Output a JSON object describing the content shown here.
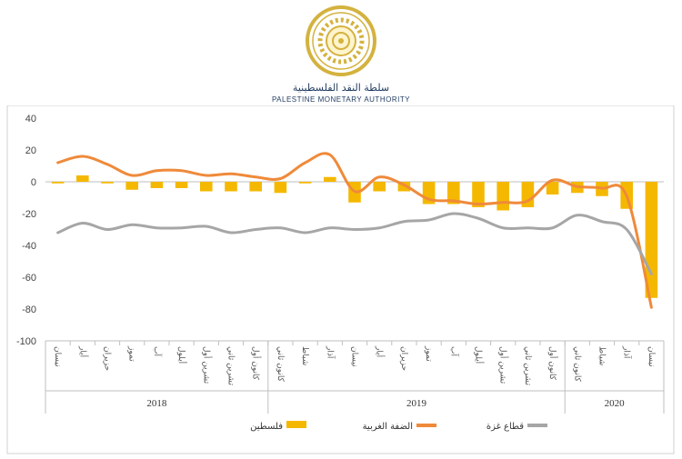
{
  "header": {
    "logo_text_ar": "سلطة النقد الفلسطينية",
    "logo_text_en": "PALESTINE MONETARY AUTHORITY",
    "seal_name": "pma-seal",
    "colors": {
      "seal": "#d4b23f",
      "text": "#1f3a5f"
    }
  },
  "chart_data": {
    "type": "bar",
    "ylim": [
      -100,
      40
    ],
    "yticks": [
      40,
      20,
      0,
      -20,
      -40,
      -60,
      -80,
      -100
    ],
    "categories": [
      "نيسان",
      "أيار",
      "حزيران",
      "تموز",
      "آب",
      "أيلول",
      "تشرين أول",
      "تشرين ثاني",
      "كانون أول",
      "كانون ثاني",
      "شباط",
      "آذار",
      "نيسان",
      "أيار",
      "حزيران",
      "تموز",
      "آب",
      "أيلول",
      "تشرين أول",
      "تشرين ثاني",
      "كانون أول",
      "كانون ثاني",
      "شباط",
      "آذار",
      "نيسان"
    ],
    "year_groups": [
      {
        "label": "2018",
        "count": 9
      },
      {
        "label": "2019",
        "count": 12
      },
      {
        "label": "2020",
        "count": 4
      }
    ],
    "series": [
      {
        "name": "فلسطين",
        "kind": "bar",
        "color": "#f5b800",
        "values": [
          -1,
          4,
          -1,
          -5,
          -4,
          -4,
          -6,
          -6,
          -6,
          -7,
          -1,
          3,
          -13,
          -6,
          -6,
          -14,
          -14,
          -16,
          -18,
          -16,
          -8,
          -7,
          -9,
          -17,
          -73
        ]
      },
      {
        "name": "الضفة الغربية",
        "kind": "line",
        "color": "#ef8a3a",
        "values": [
          12,
          16,
          11,
          4,
          7,
          7,
          4,
          5,
          3,
          2,
          12,
          17,
          -6,
          3,
          -2,
          -11,
          -12,
          -14,
          -13,
          -12,
          1,
          -3,
          -4,
          -9,
          -79
        ]
      },
      {
        "name": "قطاع غزة",
        "kind": "line",
        "color": "#a6a6a6",
        "values": [
          -32,
          -26,
          -30,
          -27,
          -29,
          -29,
          -28,
          -32,
          -30,
          -29,
          -32,
          -29,
          -30,
          -29,
          -25,
          -24,
          -20,
          -23,
          -29,
          -29,
          -29,
          -21,
          -25,
          -30,
          -58
        ]
      }
    ],
    "legend_position": "bottom",
    "grid": false
  }
}
